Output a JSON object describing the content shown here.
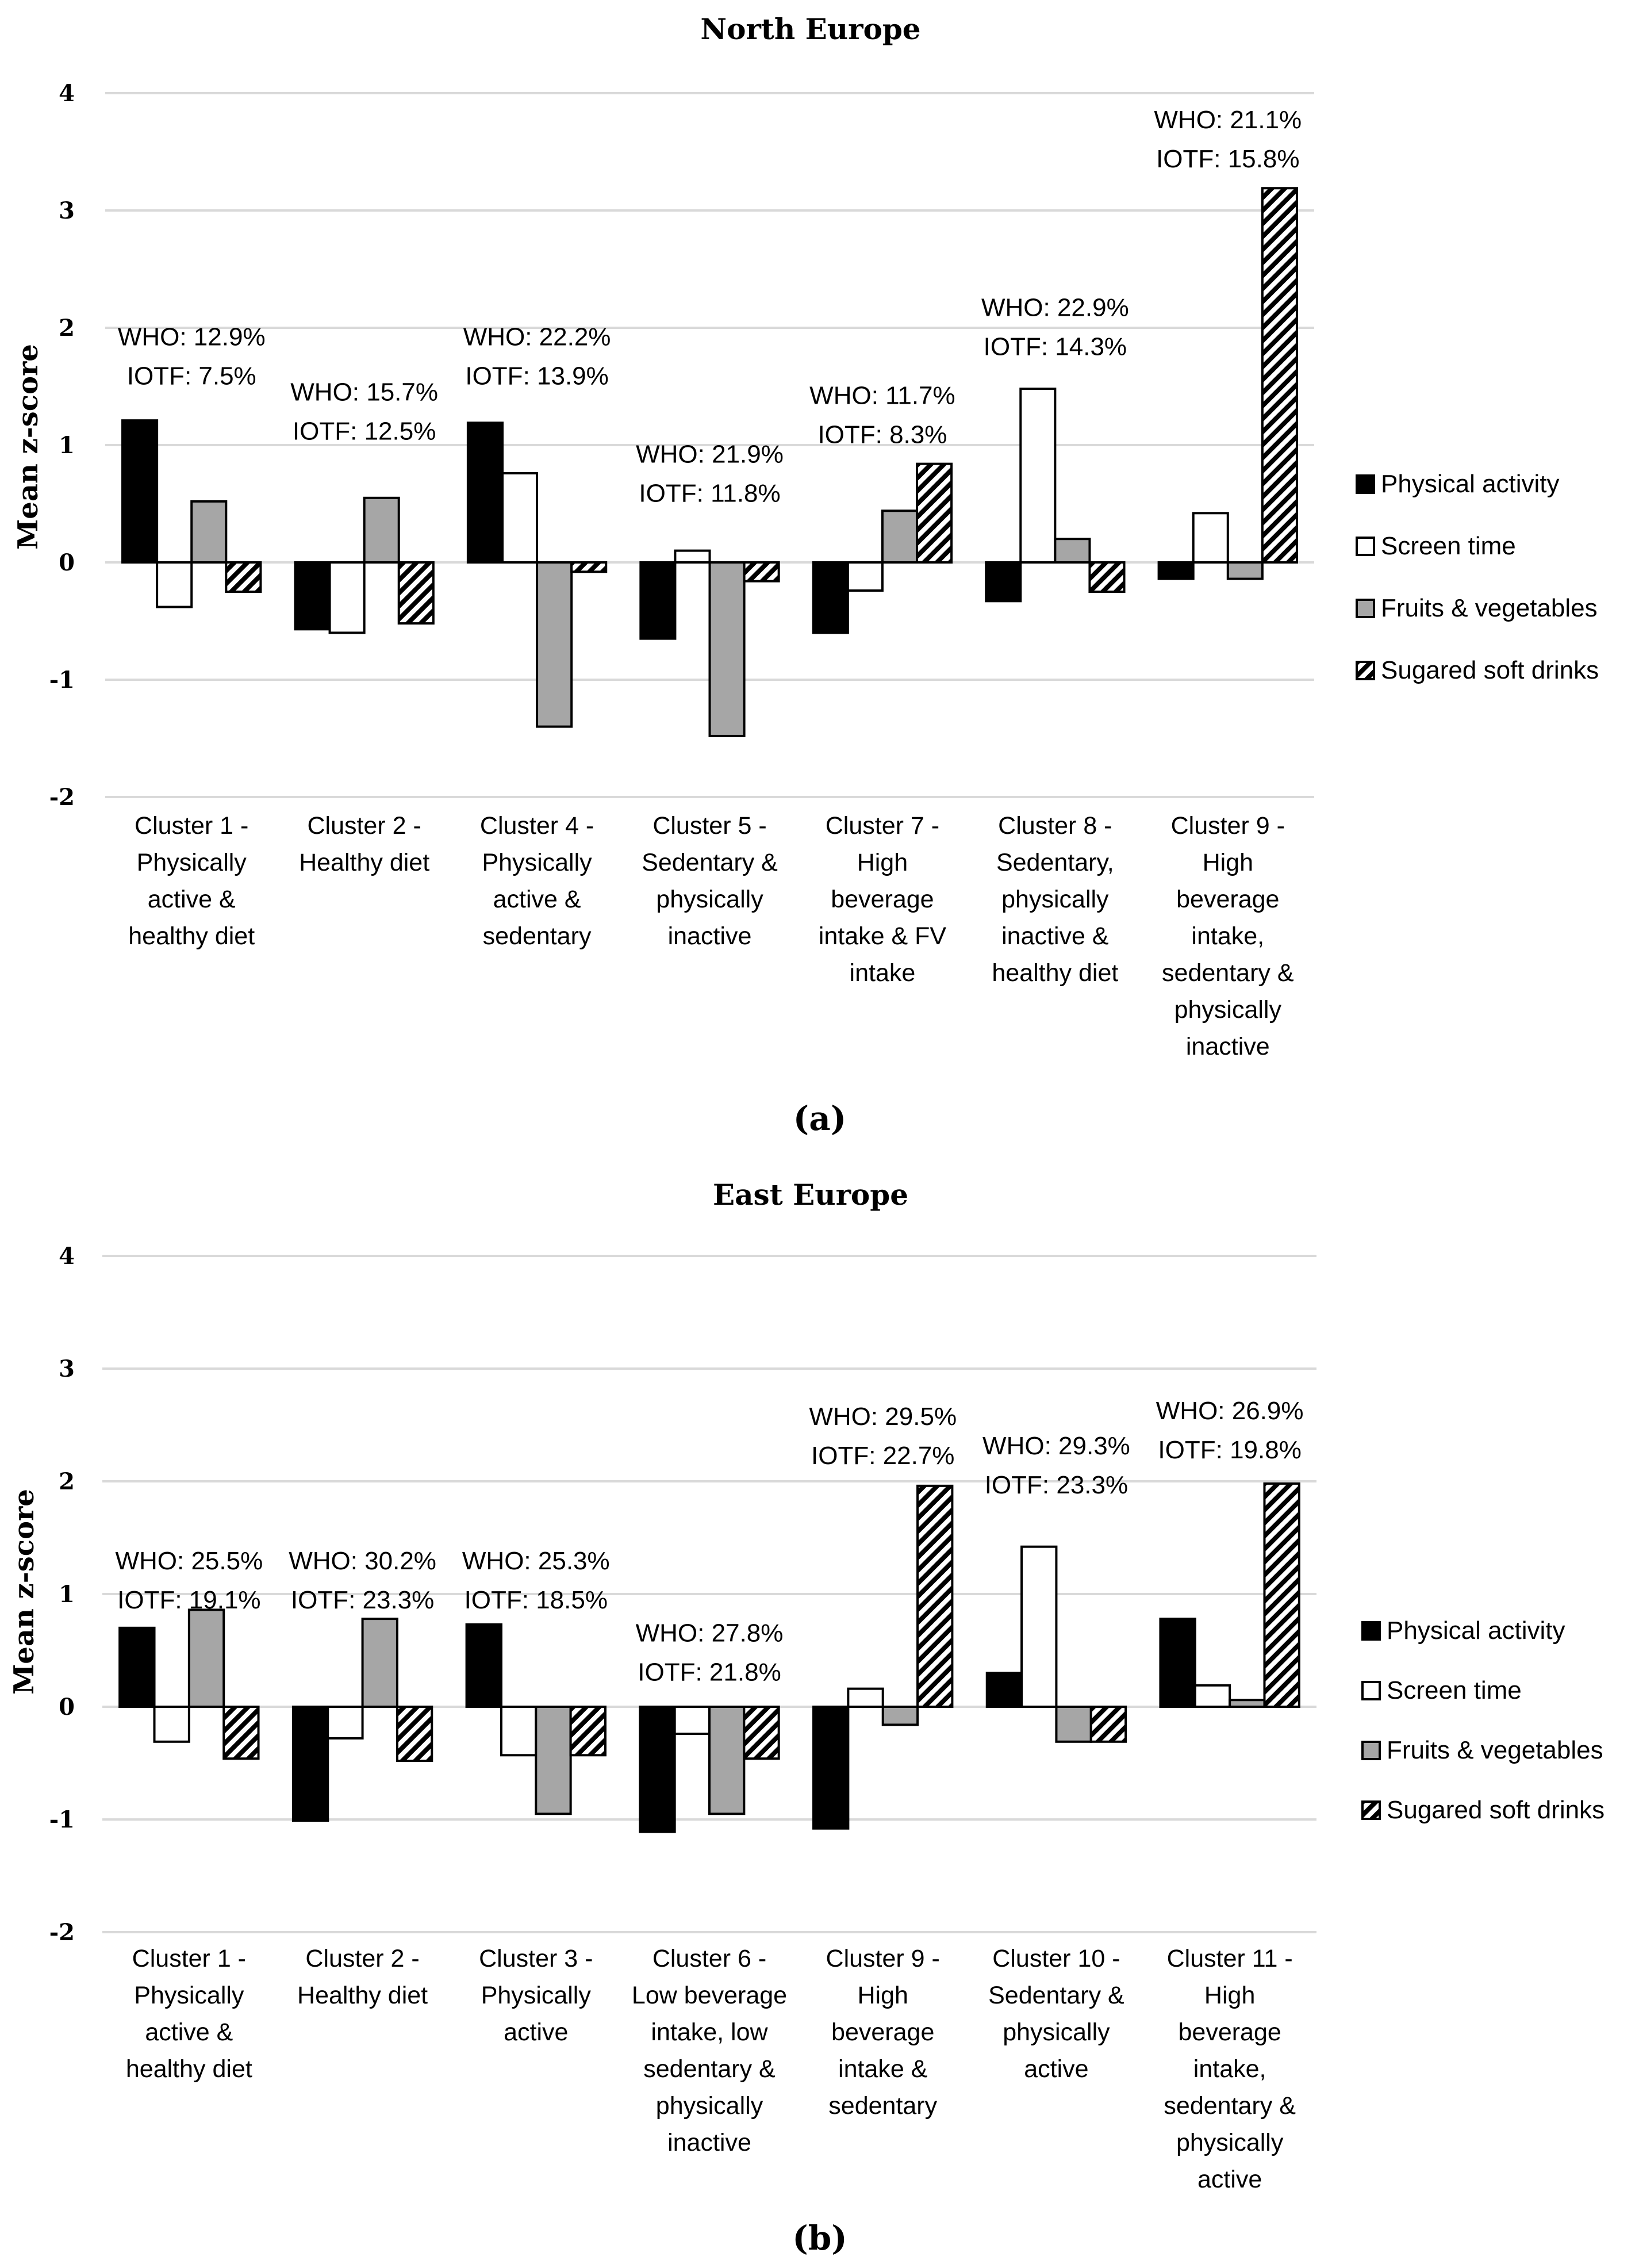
{
  "series_names": [
    "Physical activity",
    "Screen time",
    "Fruits & vegetables",
    "Sugared soft drinks"
  ],
  "colors": {
    "physical_activity": "#000000",
    "screen_time": "#ffffff",
    "fruits_vegetables": "#a6a6a6",
    "sugared_soft_drinks": "hatch",
    "gridline": "#d9d9d9",
    "outline": "#000000"
  },
  "chart_data": [
    {
      "type": "bar",
      "title": "North Europe",
      "panel_label": "(a)",
      "ylabel": "Mean z-score",
      "xlabel": "",
      "ylim": [
        -2,
        4
      ],
      "yticks": [
        4,
        3,
        2,
        1,
        0,
        -1,
        -2
      ],
      "legend_position": "right",
      "categories": [
        [
          "Cluster 1 -",
          "Physically",
          "active &",
          "healthy diet"
        ],
        [
          "Cluster 2 -",
          "Healthy diet"
        ],
        [
          "Cluster 4 -",
          "Physically",
          "active &",
          "sedentary"
        ],
        [
          "Cluster 5 -",
          "Sedentary &",
          "physically",
          "inactive"
        ],
        [
          "Cluster 7 -",
          "High",
          "beverage",
          "intake & FV",
          "intake"
        ],
        [
          "Cluster 8 -",
          "Sedentary,",
          "physically",
          "inactive &",
          "healthy diet"
        ],
        [
          "Cluster 9 -",
          "High",
          "beverage",
          "intake,",
          "sedentary &",
          "physically",
          "inactive"
        ]
      ],
      "annotations": [
        [
          "WHO: 12.9%",
          "IOTF: 7.5%"
        ],
        [
          "WHO: 15.7%",
          "IOTF: 12.5%"
        ],
        [
          "WHO: 22.2%",
          "IOTF: 13.9%"
        ],
        [
          "WHO: 21.9%",
          "IOTF: 11.8%"
        ],
        [
          "WHO: 11.7%",
          "IOTF: 8.3%"
        ],
        [
          "WHO: 22.9%",
          "IOTF: 14.3%"
        ],
        [
          "WHO: 21.1%",
          "IOTF: 15.8%"
        ]
      ],
      "annotation_levels": [
        1.85,
        1.38,
        1.85,
        0.85,
        1.35,
        2.1,
        3.7
      ],
      "series": [
        {
          "name": "Physical activity",
          "values": [
            1.21,
            -0.57,
            1.19,
            -0.65,
            -0.6,
            -0.33,
            -0.14
          ]
        },
        {
          "name": "Screen time",
          "values": [
            -0.38,
            -0.6,
            0.76,
            0.1,
            -0.24,
            1.48,
            0.42
          ]
        },
        {
          "name": "Fruits & vegetables",
          "values": [
            0.52,
            0.55,
            -1.4,
            -1.48,
            0.44,
            0.2,
            -0.14
          ]
        },
        {
          "name": "Sugared soft drinks",
          "values": [
            -0.25,
            -0.52,
            -0.08,
            -0.16,
            0.84,
            -0.25,
            3.19
          ]
        }
      ]
    },
    {
      "type": "bar",
      "title": "East Europe",
      "panel_label": "(b)",
      "ylabel": "Mean z-score",
      "xlabel": "",
      "ylim": [
        -2,
        4
      ],
      "yticks": [
        4,
        3,
        2,
        1,
        0,
        -1,
        -2
      ],
      "legend_position": "right",
      "categories": [
        [
          "Cluster 1 -",
          "Physically",
          "active &",
          "healthy diet"
        ],
        [
          "Cluster 2 -",
          "Healthy diet"
        ],
        [
          "Cluster 3 -",
          "Physically",
          "active"
        ],
        [
          "Cluster 6 -",
          "Low beverage",
          "intake, low",
          "sedentary &",
          "physically",
          "inactive"
        ],
        [
          "Cluster 9 -",
          "High",
          "beverage",
          "intake &",
          "sedentary"
        ],
        [
          "Cluster 10 -",
          "Sedentary &",
          "physically",
          "active"
        ],
        [
          "Cluster 11 -",
          "High",
          "beverage",
          "intake,",
          "sedentary &",
          "physically",
          "active"
        ]
      ],
      "annotations": [
        [
          "WHO: 25.5%",
          "IOTF: 19.1%"
        ],
        [
          "WHO: 30.2%",
          "IOTF: 23.3%"
        ],
        [
          "WHO: 25.3%",
          "IOTF: 18.5%"
        ],
        [
          "WHO: 27.8%",
          "IOTF: 21.8%"
        ],
        [
          "WHO: 29.5%",
          "IOTF: 22.7%"
        ],
        [
          "WHO: 29.3%",
          "IOTF: 23.3%"
        ],
        [
          "WHO: 26.9%",
          "IOTF: 19.8%"
        ]
      ],
      "annotation_levels": [
        1.22,
        1.22,
        1.22,
        0.58,
        2.5,
        2.24,
        2.55
      ],
      "series": [
        {
          "name": "Physical activity",
          "values": [
            0.7,
            -1.01,
            0.73,
            -1.11,
            -1.08,
            0.3,
            0.78
          ]
        },
        {
          "name": "Screen time",
          "values": [
            -0.31,
            -0.28,
            -0.43,
            -0.24,
            0.16,
            1.42,
            0.19
          ]
        },
        {
          "name": "Fruits & vegetables",
          "values": [
            0.86,
            0.78,
            -0.95,
            -0.95,
            -0.16,
            -0.31,
            0.06
          ]
        },
        {
          "name": "Sugared soft drinks",
          "values": [
            -0.46,
            -0.48,
            -0.43,
            -0.46,
            1.96,
            -0.31,
            1.98
          ]
        }
      ]
    }
  ]
}
